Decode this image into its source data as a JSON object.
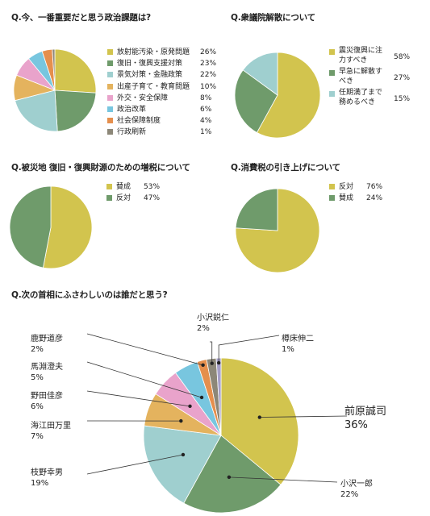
{
  "chart_data": [
    {
      "type": "pie",
      "title": "Q.今、一番重要だと思う政治課題は?",
      "categories": [
        "放射能汚染・原発問題",
        "復旧・復興支援対策",
        "景気対策・金融政策",
        "出産子育て・教育問題",
        "外交・安全保障",
        "政治改革",
        "社会保障制度",
        "行政刷新"
      ],
      "values": [
        26,
        23,
        22,
        10,
        8,
        6,
        4,
        1
      ],
      "labels": [
        "26%",
        "23%",
        "22%",
        "10%",
        "8%",
        "6%",
        "4%",
        "1%"
      ],
      "colors": [
        "#d2c44e",
        "#6f9b6b",
        "#9fcfcf",
        "#e4b35e",
        "#e9a3cb",
        "#78c6df",
        "#e58f4d",
        "#8c8778"
      ],
      "legend": "right"
    },
    {
      "type": "pie",
      "title": "Q.衆議院解散について",
      "categories": [
        "震災復興に注力すべき",
        "早急に解散すべき",
        "任期満了まで務めるべき"
      ],
      "values": [
        58,
        27,
        15
      ],
      "labels": [
        "58%",
        "27%",
        "15%"
      ],
      "colors": [
        "#d2c44e",
        "#6f9b6b",
        "#9fcfcf"
      ],
      "legend": "right"
    },
    {
      "type": "pie",
      "title": "Q.被災地 復旧・復興財源のための増税について",
      "categories": [
        "賛成",
        "反対"
      ],
      "values": [
        53,
        47
      ],
      "labels": [
        "53%",
        "47%"
      ],
      "colors": [
        "#d2c44e",
        "#6f9b6b"
      ],
      "legend": "right"
    },
    {
      "type": "pie",
      "title": "Q.消費税の引き上げについて",
      "categories": [
        "反対",
        "賛成"
      ],
      "values": [
        76,
        24
      ],
      "labels": [
        "76%",
        "24%"
      ],
      "colors": [
        "#d2c44e",
        "#6f9b6b"
      ],
      "legend": "right"
    },
    {
      "type": "pie",
      "title": "Q.次の首相にふさわしいのは誰だと思う?",
      "categories": [
        "前原誠司",
        "小沢一郎",
        "枝野幸男",
        "海江田万里",
        "野田佳彦",
        "馬淵澄夫",
        "鹿野道彦",
        "小沢鋭仁",
        "樽床伸二"
      ],
      "values": [
        36,
        22,
        19,
        7,
        6,
        5,
        2,
        2,
        1
      ],
      "labels": [
        "36%",
        "22%",
        "19%",
        "7%",
        "6%",
        "5%",
        "2%",
        "2%",
        "1%"
      ],
      "colors": [
        "#d2c44e",
        "#6f9b6b",
        "#9fcfcf",
        "#e4b35e",
        "#e9a3cb",
        "#78c6df",
        "#e58f4d",
        "#8c8778",
        "#a6a0c8"
      ],
      "legend": "callouts"
    }
  ]
}
